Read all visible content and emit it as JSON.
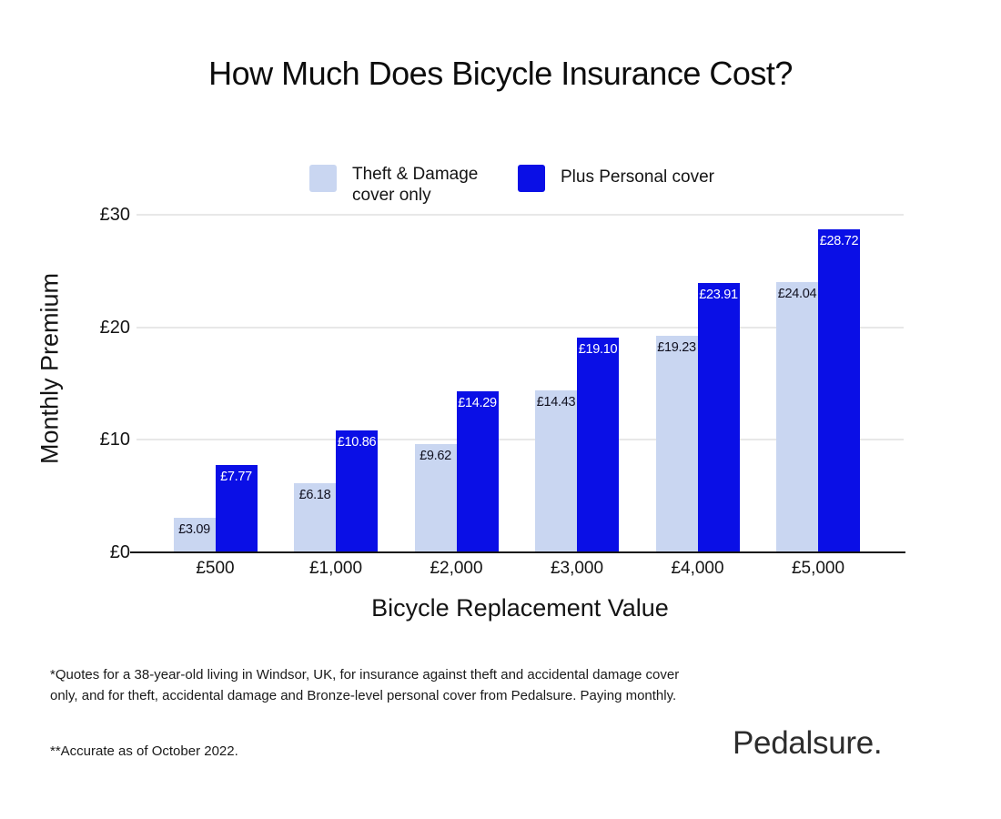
{
  "title": "How Much Does Bicycle Insurance Cost?",
  "colors": {
    "light_series": "#c9d6f1",
    "dark_series": "#0a0fe6",
    "gridline": "#e8e8e8",
    "baseline": "#161616"
  },
  "legend": {
    "items": [
      {
        "label": "Theft & Damage cover only",
        "color": "#c9d6f1"
      },
      {
        "label": "Plus Personal cover",
        "color": "#0a0fe6"
      }
    ]
  },
  "chart_data": {
    "type": "bar",
    "title": "How Much Does Bicycle Insurance Cost?",
    "xlabel": "Bicycle Replacement Value",
    "ylabel": "Monthly Premium",
    "categories": [
      "£500",
      "£1,000",
      "£2,000",
      "£3,000",
      "£4,000",
      "£5,000"
    ],
    "series": [
      {
        "name": "Theft & Damage cover only",
        "color": "#c9d6f1",
        "label_color": "#10101f",
        "values": [
          3.09,
          6.18,
          9.62,
          14.43,
          19.23,
          24.04
        ],
        "labels": [
          "£3.09",
          "£6.18",
          "£9.62",
          "£14.43",
          "£19.23",
          "£24.04"
        ]
      },
      {
        "name": "Plus Personal cover",
        "color": "#0a0fe6",
        "label_color": "#ffffff",
        "values": [
          7.77,
          10.86,
          14.29,
          19.1,
          23.91,
          28.72
        ],
        "labels": [
          "£7.77",
          "£10.86",
          "£14.29",
          "£19.10",
          "£23.91",
          "£28.72"
        ]
      }
    ],
    "ylim": [
      0,
      30
    ],
    "yticks": [
      {
        "value": 0,
        "label": "£0"
      },
      {
        "value": 10,
        "label": "£10"
      },
      {
        "value": 20,
        "label": "£20"
      },
      {
        "value": 30,
        "label": "£30"
      }
    ],
    "grid": true,
    "legend_position": "top"
  },
  "footnotes": {
    "quote_note": "*Quotes for a 38-year-old living in Windsor, UK, for insurance against theft and accidental damage cover only, and for theft, accidental damage and Bronze-level personal cover from Pedalsure. Paying monthly.",
    "accuracy_note": "**Accurate as of October 2022."
  },
  "brand": "Pedalsure."
}
